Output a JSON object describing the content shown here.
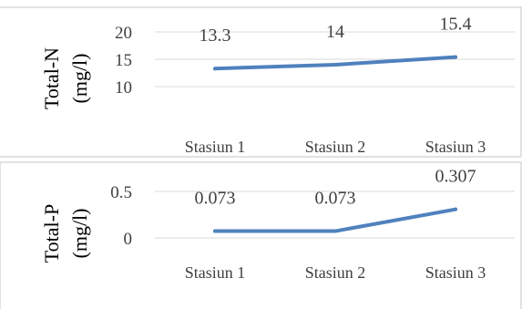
{
  "chart_data": [
    {
      "type": "line",
      "categories": [
        "Stasiun 1",
        "Stasiun 2",
        "Stasiun 3"
      ],
      "series": [
        {
          "values": [
            13.3,
            14,
            15.4
          ],
          "color": "#4f81bd"
        }
      ],
      "data_labels": [
        "13.3",
        "14",
        "15.4"
      ],
      "ylabel": "Total-N (mg/l)",
      "yticks": [
        "20",
        "15",
        "10"
      ],
      "ylim": [
        10,
        20
      ],
      "grid": "horizontal"
    },
    {
      "type": "line",
      "categories": [
        "Stasiun 1",
        "Stasiun 2",
        "Stasiun 3"
      ],
      "series": [
        {
          "values": [
            0.073,
            0.073,
            0.307
          ],
          "color": "#4f81bd"
        }
      ],
      "data_labels": [
        "0.073",
        "0.073",
        "0.307"
      ],
      "ylabel": "Total-P (mg/l)",
      "yticks": [
        "0.5",
        "0"
      ],
      "ylim": [
        0,
        0.5
      ],
      "grid": "horizontal"
    }
  ]
}
